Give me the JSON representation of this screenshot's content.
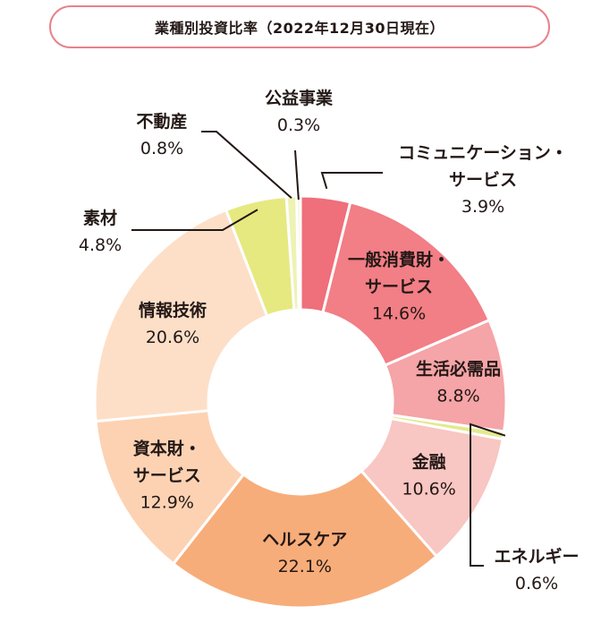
{
  "title": "業種別投資比率（2022年12月30日現在）",
  "chart_data": {
    "type": "donut",
    "title": "業種別投資比率（2022年12月30日現在）",
    "unit": "%",
    "slices": [
      {
        "name": "コミュニケーション・サービス",
        "name_lines": [
          "コミュニケーション・",
          "サービス"
        ],
        "value": 3.9,
        "value_label": "3.9%",
        "color": "#ef6f7a"
      },
      {
        "name": "一般消費財・サービス",
        "name_lines": [
          "一般消費財・",
          "サービス"
        ],
        "value": 14.6,
        "value_label": "14.6%",
        "color": "#f27e86"
      },
      {
        "name": "生活必需品",
        "name_lines": [
          "生活必需品"
        ],
        "value": 8.8,
        "value_label": "8.8%",
        "color": "#f5a4a7"
      },
      {
        "name": "エネルギー",
        "name_lines": [
          "エネルギー"
        ],
        "value": 0.6,
        "value_label": "0.6%",
        "color": "#e4e98f"
      },
      {
        "name": "金融",
        "name_lines": [
          "金融"
        ],
        "value": 10.6,
        "value_label": "10.6%",
        "color": "#f8c6c3"
      },
      {
        "name": "ヘルスケア",
        "name_lines": [
          "ヘルスケア"
        ],
        "value": 22.1,
        "value_label": "22.1%",
        "color": "#f7ad7a"
      },
      {
        "name": "資本財・サービス",
        "name_lines": [
          "資本財・",
          "サービス"
        ],
        "value": 12.9,
        "value_label": "12.9%",
        "color": "#fcd2b3"
      },
      {
        "name": "情報技術",
        "name_lines": [
          "情報技術"
        ],
        "value": 20.6,
        "value_label": "20.6%",
        "color": "#fddfc8"
      },
      {
        "name": "素材",
        "name_lines": [
          "素材"
        ],
        "value": 4.8,
        "value_label": "4.8%",
        "color": "#e6e980"
      },
      {
        "name": "不動産",
        "name_lines": [
          "不動産"
        ],
        "value": 0.8,
        "value_label": "0.8%",
        "color": "#eef2b4"
      },
      {
        "name": "公益事業",
        "name_lines": [
          "公益事業"
        ],
        "value": 0.3,
        "value_label": "0.3%",
        "color": "#f2f5cc"
      }
    ]
  }
}
